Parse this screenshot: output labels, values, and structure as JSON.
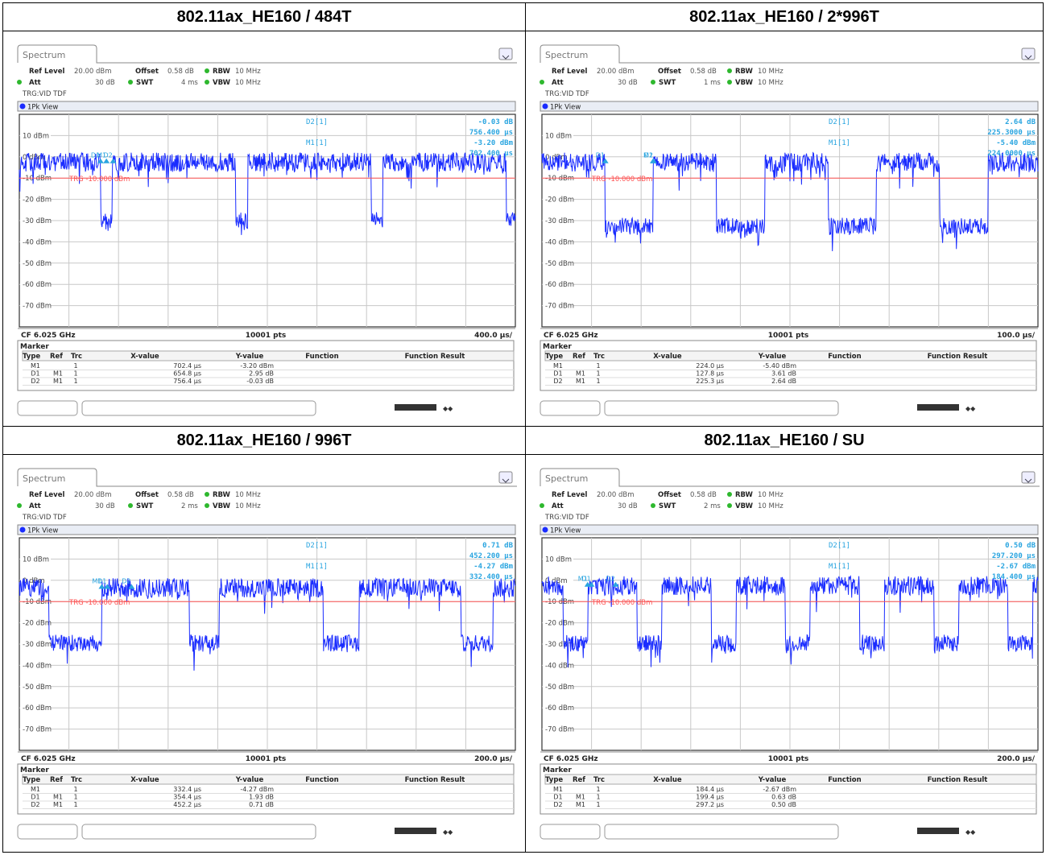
{
  "panels": [
    {
      "title": "802.11ax_HE160 / 484T",
      "tab": "Spectrum",
      "settings": {
        "ref_level_label": "Ref Level",
        "ref_level": "20.00 dBm",
        "offset_label": "Offset",
        "offset": "0.58 dB",
        "rbw_label": "RBW",
        "rbw": "10 MHz",
        "att_label": "Att",
        "att": "30 dB",
        "swt_label": "SWT",
        "swt": "4 ms",
        "vbw_label": "VBW",
        "vbw": "10 MHz",
        "trg": "TRG:VID TDF"
      },
      "view_label": "1Pk View",
      "readout": {
        "d2_label": "D2[1]",
        "d2_val": "-0.03 dB",
        "d2_time": "756.400 µs",
        "m1_label": "M1[1]",
        "m1_val": "-3.20 dBm",
        "m1_time": "702.400 µs"
      },
      "trg_label": "TRG -10.000 dBm",
      "footer": {
        "cf": "CF 6.025 GHz",
        "pts": "10001 pts",
        "div": "400.0 µs/"
      },
      "marker_title": "Marker",
      "table_headers": [
        "Type",
        "Ref",
        "Trc",
        "X-value",
        "Y-value",
        "Function",
        "Function Result"
      ],
      "table_rows": [
        [
          "M1",
          "",
          "1",
          "702.4 µs",
          "-3.20 dBm",
          "",
          ""
        ],
        [
          "D1",
          "M1",
          "1",
          "654.8 µs",
          "2.95 dB",
          "",
          ""
        ],
        [
          "D2",
          "M1",
          "1",
          "756.4 µs",
          "-0.03 dB",
          "",
          ""
        ]
      ]
    },
    {
      "title": "802.11ax_HE160 / 2*996T",
      "tab": "Spectrum",
      "settings": {
        "ref_level_label": "Ref Level",
        "ref_level": "20.00 dBm",
        "offset_label": "Offset",
        "offset": "0.58 dB",
        "rbw_label": "RBW",
        "rbw": "10 MHz",
        "att_label": "Att",
        "att": "30 dB",
        "swt_label": "SWT",
        "swt": "1 ms",
        "vbw_label": "VBW",
        "vbw": "10 MHz",
        "trg": "TRG:VID TDF"
      },
      "view_label": "1Pk View",
      "readout": {
        "d2_label": "D2[1]",
        "d2_val": "2.64 dB",
        "d2_time": "225.3000 µs",
        "m1_label": "M1[1]",
        "m1_val": "-5.40 dBm",
        "m1_time": "224.0000 µs"
      },
      "trg_label": "TRG -10.000 dBm",
      "footer": {
        "cf": "CF 6.025 GHz",
        "pts": "10001 pts",
        "div": "100.0 µs/"
      },
      "marker_title": "Marker",
      "table_headers": [
        "Type",
        "Ref",
        "Trc",
        "X-value",
        "Y-value",
        "Function",
        "Function Result"
      ],
      "table_rows": [
        [
          "M1",
          "",
          "1",
          "224.0 µs",
          "-5.40 dBm",
          "",
          ""
        ],
        [
          "D1",
          "M1",
          "1",
          "127.8 µs",
          "3.61 dB",
          "",
          ""
        ],
        [
          "D2",
          "M1",
          "1",
          "225.3 µs",
          "2.64 dB",
          "",
          ""
        ]
      ]
    },
    {
      "title": "802.11ax_HE160 / 996T",
      "tab": "Spectrum",
      "settings": {
        "ref_level_label": "Ref Level",
        "ref_level": "20.00 dBm",
        "offset_label": "Offset",
        "offset": "0.58 dB",
        "rbw_label": "RBW",
        "rbw": "10 MHz",
        "att_label": "Att",
        "att": "30 dB",
        "swt_label": "SWT",
        "swt": "2 ms",
        "vbw_label": "VBW",
        "vbw": "10 MHz",
        "trg": "TRG:VID TDF"
      },
      "view_label": "1Pk View",
      "readout": {
        "d2_label": "D2[1]",
        "d2_val": "0.71 dB",
        "d2_time": "452.200 µs",
        "m1_label": "M1[1]",
        "m1_val": "-4.27 dBm",
        "m1_time": "332.400 µs"
      },
      "trg_label": "TRG -10.000 dBm",
      "footer": {
        "cf": "CF 6.025 GHz",
        "pts": "10001 pts",
        "div": "200.0 µs/"
      },
      "marker_title": "Marker",
      "table_headers": [
        "Type",
        "Ref",
        "Trc",
        "X-value",
        "Y-value",
        "Function",
        "Function Result"
      ],
      "table_rows": [
        [
          "M1",
          "",
          "1",
          "332.4 µs",
          "-4.27 dBm",
          "",
          ""
        ],
        [
          "D1",
          "M1",
          "1",
          "354.4 µs",
          "1.93 dB",
          "",
          ""
        ],
        [
          "D2",
          "M1",
          "1",
          "452.2 µs",
          "0.71 dB",
          "",
          ""
        ]
      ]
    },
    {
      "title": "802.11ax_HE160 / SU",
      "tab": "Spectrum",
      "settings": {
        "ref_level_label": "Ref Level",
        "ref_level": "20.00 dBm",
        "offset_label": "Offset",
        "offset": "0.58 dB",
        "rbw_label": "RBW",
        "rbw": "10 MHz",
        "att_label": "Att",
        "att": "30 dB",
        "swt_label": "SWT",
        "swt": "2 ms",
        "vbw_label": "VBW",
        "vbw": "10 MHz",
        "trg": "TRG:VID TDF"
      },
      "view_label": "1Pk View",
      "readout": {
        "d2_label": "D2[1]",
        "d2_val": "0.50 dB",
        "d2_time": "297.200 µs",
        "m1_label": "M1[1]",
        "m1_val": "-2.67 dBm",
        "m1_time": "184.400 µs"
      },
      "trg_label": "TRG -10.000 dBm",
      "footer": {
        "cf": "CF 6.025 GHz",
        "pts": "10001 pts",
        "div": "200.0 µs/"
      },
      "marker_title": "Marker",
      "table_headers": [
        "Type",
        "Ref",
        "Trc",
        "X-value",
        "Y-value",
        "Function",
        "Function Result"
      ],
      "table_rows": [
        [
          "M1",
          "",
          "1",
          "184.4 µs",
          "-2.67 dBm",
          "",
          ""
        ],
        [
          "D1",
          "M1",
          "1",
          "199.4 µs",
          "0.63 dB",
          "",
          ""
        ],
        [
          "D2",
          "M1",
          "1",
          "297.2 µs",
          "0.50 dB",
          "",
          ""
        ]
      ]
    }
  ],
  "chart_data": [
    {
      "type": "line",
      "title": "802.11ax_HE160 / 484T",
      "y_ticks": [
        "10 dBm",
        "0 dBm",
        "-10 dBm",
        "-20 dBm",
        "-30 dBm",
        "-40 dBm",
        "-50 dBm",
        "-60 dBm",
        "-70 dBm"
      ],
      "ylim": [
        -80,
        20
      ],
      "xlim_us": [
        0,
        4000
      ],
      "grid": true,
      "trigger_level_dBm": -10,
      "series": [
        {
          "high_level_dBm": -3,
          "low_level_dBm": -30,
          "segments_us": [
            [
              0,
              654
            ],
            [
              654,
              750
            ],
            [
              750,
              1745
            ],
            [
              1745,
              1841
            ],
            [
              1841,
              2836
            ],
            [
              2836,
              2932
            ],
            [
              2932,
              3927
            ],
            [
              3927,
              4000
            ]
          ],
          "segment_levels": [
            "high",
            "low",
            "high",
            "low",
            "high",
            "low",
            "high",
            "low"
          ]
        }
      ],
      "markers": [
        {
          "name": "M1",
          "x_us": 702.4,
          "y_dBm": -3.2
        },
        {
          "name": "D1",
          "x_us": 654.8,
          "y_dB": 2.95
        },
        {
          "name": "D2",
          "x_us": 756.4,
          "y_dB": -0.03
        }
      ],
      "colors": {
        "trace": "#1a2cff",
        "trigger": "#ff5555",
        "marker": "#2aa5e0"
      }
    },
    {
      "type": "line",
      "title": "802.11ax_HE160 / 2*996T",
      "y_ticks": [
        "10 dBm",
        "0 dBm",
        "-10 dBm",
        "-20 dBm",
        "-30 dBm",
        "-40 dBm",
        "-50 dBm",
        "-60 dBm",
        "-70 dBm"
      ],
      "ylim": [
        -80,
        20
      ],
      "xlim_us": [
        0,
        1000
      ],
      "grid": true,
      "trigger_level_dBm": -10,
      "series": [
        {
          "high_level_dBm": -3,
          "low_level_dBm": -33,
          "segments_us": [
            [
              0,
              127
            ],
            [
              127,
              224
            ],
            [
              224,
              352
            ],
            [
              352,
              449
            ],
            [
              449,
              577
            ],
            [
              577,
              674
            ],
            [
              674,
              802
            ],
            [
              802,
              899
            ],
            [
              899,
              1000
            ]
          ],
          "segment_levels": [
            "high",
            "low",
            "high",
            "low",
            "high",
            "low",
            "high",
            "low",
            "high"
          ]
        }
      ],
      "markers": [
        {
          "name": "M1",
          "x_us": 224.0,
          "y_dBm": -5.4
        },
        {
          "name": "D1",
          "x_us": 127.8,
          "y_dB": 3.61
        },
        {
          "name": "D2",
          "x_us": 225.3,
          "y_dB": 2.64
        }
      ],
      "colors": {
        "trace": "#1a2cff",
        "trigger": "#ff5555",
        "marker": "#2aa5e0"
      }
    },
    {
      "type": "line",
      "title": "802.11ax_HE160 / 996T",
      "y_ticks": [
        "10 dBm",
        "0 dBm",
        "-10 dBm",
        "-20 dBm",
        "-30 dBm",
        "-40 dBm",
        "-50 dBm",
        "-60 dBm",
        "-70 dBm"
      ],
      "ylim": [
        -80,
        20
      ],
      "xlim_us": [
        0,
        2000
      ],
      "grid": true,
      "trigger_level_dBm": -10,
      "series": [
        {
          "high_level_dBm": -4,
          "low_level_dBm": -30,
          "segments_us": [
            [
              0,
              118
            ],
            [
              118,
              332
            ],
            [
              332,
              685
            ],
            [
              685,
              806
            ],
            [
              806,
              1225
            ],
            [
              1225,
              1370
            ],
            [
              1370,
              1780
            ],
            [
              1780,
              1910
            ],
            [
              1910,
              2000
            ]
          ],
          "segment_levels": [
            "high",
            "low",
            "high",
            "low",
            "high",
            "low",
            "high",
            "low",
            "high"
          ]
        }
      ],
      "markers": [
        {
          "name": "M1",
          "x_us": 332.4,
          "y_dBm": -4.27
        },
        {
          "name": "D1",
          "x_us": 354.4,
          "y_dB": 1.93
        },
        {
          "name": "D2",
          "x_us": 452.2,
          "y_dB": 0.71
        }
      ],
      "colors": {
        "trace": "#1a2cff",
        "trigger": "#ff5555",
        "marker": "#2aa5e0"
      }
    },
    {
      "type": "line",
      "title": "802.11ax_HE160 / SU",
      "y_ticks": [
        "10 dBm",
        "0 dBm",
        "-10 dBm",
        "-20 dBm",
        "-30 dBm",
        "-40 dBm",
        "-50 dBm",
        "-60 dBm",
        "-70 dBm"
      ],
      "ylim": [
        -80,
        20
      ],
      "xlim_us": [
        0,
        2000
      ],
      "grid": true,
      "trigger_level_dBm": -10,
      "series": [
        {
          "high_level_dBm": -3,
          "low_level_dBm": -30,
          "segments_us": [
            [
              0,
              85
            ],
            [
              85,
              185
            ],
            [
              185,
              384
            ],
            [
              384,
              484
            ],
            [
              484,
              683
            ],
            [
              683,
              783
            ],
            [
              783,
              982
            ],
            [
              982,
              1082
            ],
            [
              1082,
              1281
            ],
            [
              1281,
              1381
            ],
            [
              1381,
              1580
            ],
            [
              1580,
              1680
            ],
            [
              1680,
              1879
            ],
            [
              1879,
              1979
            ],
            [
              1979,
              2000
            ]
          ],
          "segment_levels": [
            "high",
            "low",
            "high",
            "low",
            "high",
            "low",
            "high",
            "low",
            "high",
            "low",
            "high",
            "low",
            "high",
            "low",
            "high"
          ]
        }
      ],
      "markers": [
        {
          "name": "M1",
          "x_us": 184.4,
          "y_dBm": -2.67
        },
        {
          "name": "D1",
          "x_us": 199.4,
          "y_dB": 0.63
        },
        {
          "name": "D2",
          "x_us": 297.2,
          "y_dB": 0.5
        }
      ],
      "colors": {
        "trace": "#1a2cff",
        "trigger": "#ff5555",
        "marker": "#2aa5e0"
      }
    }
  ]
}
